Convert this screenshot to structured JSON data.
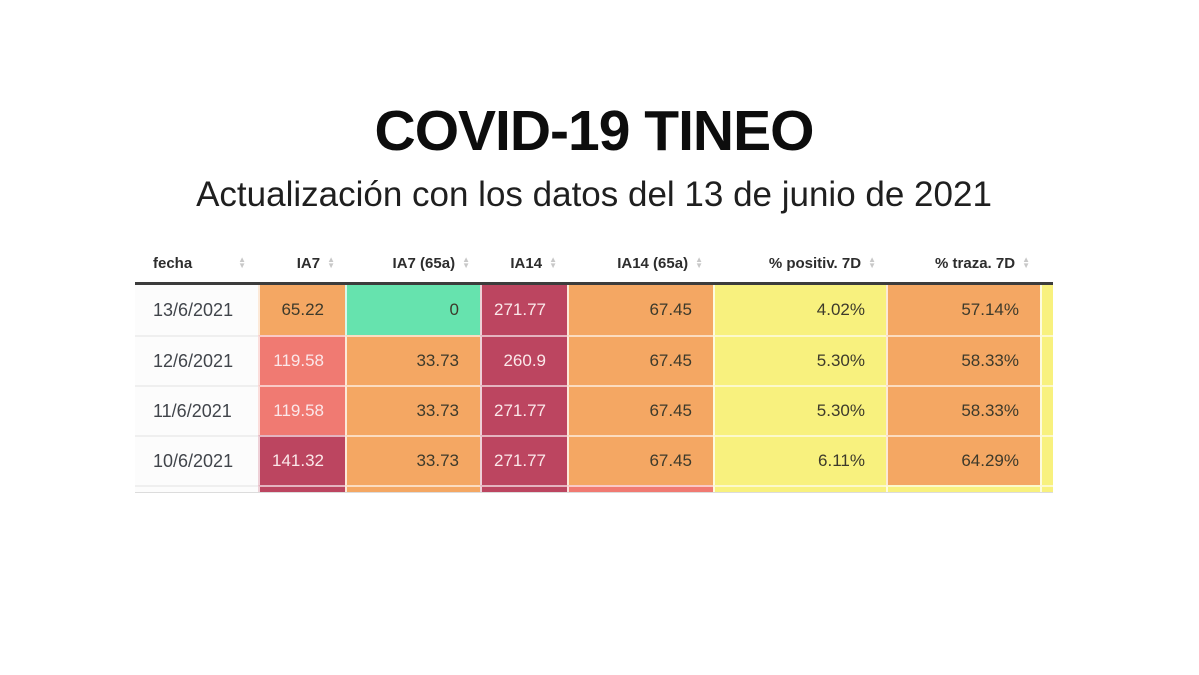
{
  "page": {
    "title": "COVID-19 TINEO",
    "subtitle": "Actualización con los datos del 13 de junio de 2021"
  },
  "colors": {
    "orange": "#F4A763",
    "mint": "#66E3AE",
    "maroon": "#BC4560",
    "salmon": "#F07A72",
    "yellow": "#F8F17E",
    "dark_text": "#3D3A2B",
    "light_text": "#FBE8EA",
    "date_text": "#41454B",
    "date_bg": "#FCFCFC",
    "header_text": "#2D2D2D",
    "header_border": "#3C3C3C",
    "sort_icon": "#C8C8C8"
  },
  "sort_icon": {
    "up": "▲",
    "down": "▼"
  },
  "table": {
    "columns": [
      {
        "key": "fecha",
        "label": "fecha",
        "align": "left"
      },
      {
        "key": "ia7",
        "label": "IA7"
      },
      {
        "key": "ia7_65a",
        "label": "IA7 (65a)"
      },
      {
        "key": "ia14",
        "label": "IA14"
      },
      {
        "key": "ia14_65a",
        "label": "IA14 (65a)"
      },
      {
        "key": "positiv_7d",
        "label": "% positiv. 7D"
      },
      {
        "key": "traza_7d",
        "label": "% traza. 7D"
      }
    ],
    "rows": [
      {
        "fecha": "13/6/2021",
        "values": [
          "65.22",
          "0",
          "271.77",
          "67.45",
          "4.02%",
          "57.14%"
        ],
        "bg": [
          "orange",
          "mint",
          "maroon",
          "orange",
          "yellow",
          "orange"
        ],
        "extra_bg": "yellow",
        "partial": false
      },
      {
        "fecha": "12/6/2021",
        "values": [
          "119.58",
          "33.73",
          "260.9",
          "67.45",
          "5.30%",
          "58.33%"
        ],
        "bg": [
          "salmon",
          "orange",
          "maroon",
          "orange",
          "yellow",
          "orange"
        ],
        "extra_bg": "yellow",
        "partial": false
      },
      {
        "fecha": "11/6/2021",
        "values": [
          "119.58",
          "33.73",
          "271.77",
          "67.45",
          "5.30%",
          "58.33%"
        ],
        "bg": [
          "salmon",
          "orange",
          "maroon",
          "orange",
          "yellow",
          "orange"
        ],
        "extra_bg": "yellow",
        "partial": false
      },
      {
        "fecha": "10/6/2021",
        "values": [
          "141.32",
          "33.73",
          "271.77",
          "67.45",
          "6.11%",
          "64.29%"
        ],
        "bg": [
          "maroon",
          "orange",
          "maroon",
          "orange",
          "yellow",
          "orange"
        ],
        "extra_bg": "yellow",
        "partial": false
      },
      {
        "fecha": "",
        "values": [
          "",
          "",
          "",
          "",
          "",
          ""
        ],
        "bg": [
          "maroon",
          "orange",
          "maroon",
          "salmon",
          "yellow",
          "yellow"
        ],
        "extra_bg": "yellow",
        "partial": true
      }
    ]
  },
  "chart_data": {
    "type": "table",
    "title": "COVID-19 TINEO",
    "subtitle": "Actualización con los datos del 13 de junio de 2021",
    "columns": [
      "fecha",
      "IA7",
      "IA7 (65a)",
      "IA14",
      "IA14 (65a)",
      "% positiv. 7D",
      "% traza. 7D"
    ],
    "rows": [
      [
        "13/6/2021",
        "65.22",
        "0",
        "271.77",
        "67.45",
        "4.02%",
        "57.14%"
      ],
      [
        "12/6/2021",
        "119.58",
        "33.73",
        "260.9",
        "67.45",
        "5.30%",
        "58.33%"
      ],
      [
        "11/6/2021",
        "119.58",
        "33.73",
        "271.77",
        "67.45",
        "5.30%",
        "58.33%"
      ],
      [
        "10/6/2021",
        "141.32",
        "33.73",
        "271.77",
        "67.45",
        "6.11%",
        "64.29%"
      ]
    ],
    "sortable": true,
    "legend_position": "none",
    "grid": false
  }
}
